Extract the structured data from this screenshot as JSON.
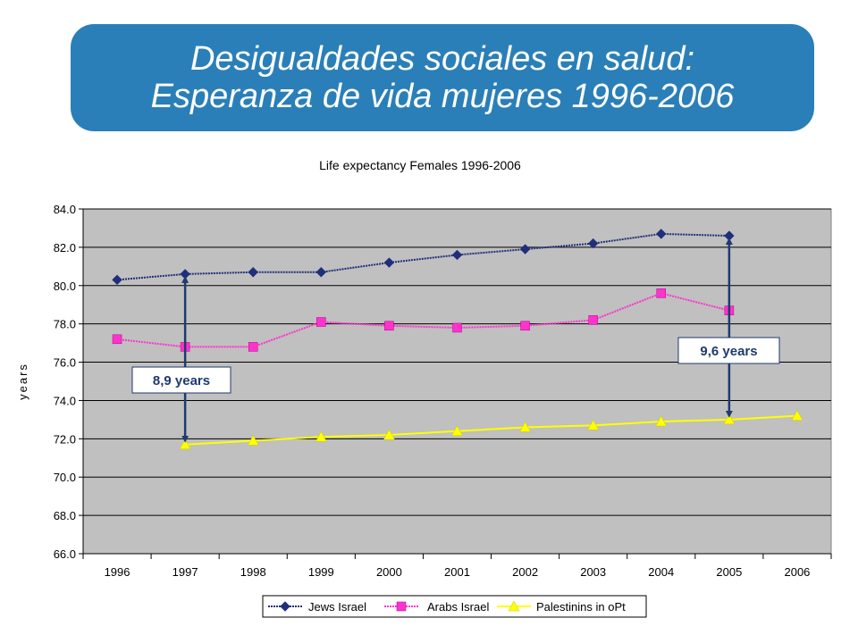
{
  "banner": {
    "line1": "Desigualdades sociales en salud:",
    "line2": "Esperanza de vida mujeres 1996-2006"
  },
  "chart_data": {
    "type": "line",
    "title": "Life expectancy Females 1996-2006",
    "xlabel": "",
    "ylabel": "years",
    "categories": [
      "1996",
      "1997",
      "1998",
      "1999",
      "2000",
      "2001",
      "2002",
      "2003",
      "2004",
      "2005",
      "2006"
    ],
    "ylim": [
      66.0,
      84.0
    ],
    "yticks": [
      "66.0",
      "68.0",
      "70.0",
      "72.0",
      "74.0",
      "76.0",
      "78.0",
      "80.0",
      "82.0",
      "84.0"
    ],
    "grid": true,
    "legend_position": "bottom",
    "plot_background": "#c0c0c0",
    "series": [
      {
        "name": "Jews Israel",
        "color": "#1f2f7a",
        "marker": "diamond",
        "values": [
          80.3,
          80.6,
          80.7,
          80.7,
          81.2,
          81.6,
          81.9,
          82.2,
          82.7,
          82.6,
          null
        ]
      },
      {
        "name": "Arabs Israel",
        "color": "#ff33cc",
        "marker": "square",
        "values": [
          77.2,
          76.8,
          76.8,
          78.1,
          77.9,
          77.8,
          77.9,
          78.2,
          79.6,
          78.7,
          null
        ]
      },
      {
        "name": "Palestinins in oPt",
        "color": "#ffff00",
        "marker": "triangle",
        "values": [
          null,
          71.7,
          71.9,
          72.1,
          72.2,
          72.4,
          72.6,
          72.7,
          72.9,
          73.0,
          73.2
        ]
      }
    ],
    "annotations": [
      {
        "text": "8,9 years",
        "category": "1997",
        "from": 80.6,
        "to": 71.7
      },
      {
        "text": "9,6 years",
        "category": "2005",
        "from": 82.6,
        "to": 73.0
      }
    ]
  }
}
